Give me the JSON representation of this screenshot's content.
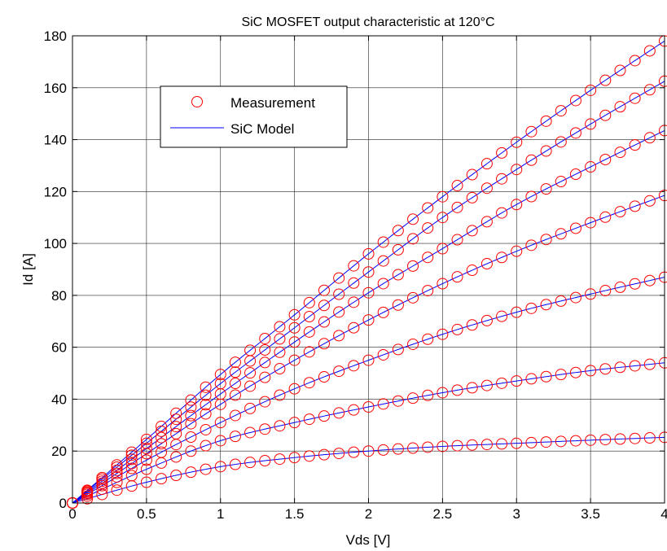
{
  "chart_data": {
    "type": "scatter",
    "title": "SiC MOSFET output characteristic at 120°C",
    "xlabel": "Vds [V]",
    "ylabel": "Id [A]",
    "xlim": [
      0,
      4
    ],
    "ylim": [
      0,
      180
    ],
    "xticks": [
      0,
      0.5,
      1,
      1.5,
      2,
      2.5,
      3,
      3.5,
      4
    ],
    "xtick_labels": [
      "0",
      "0.5",
      "1",
      "1.5",
      "2",
      "2.5",
      "3",
      "3.5",
      "4"
    ],
    "yticks": [
      0,
      20,
      40,
      60,
      80,
      100,
      120,
      140,
      160,
      180
    ],
    "ytick_labels": [
      "0",
      "20",
      "40",
      "60",
      "80",
      "100",
      "120",
      "140",
      "160",
      "180"
    ],
    "grid": true,
    "legend_position": "top-left",
    "legend": [
      {
        "label": "Measurement",
        "style": "marker",
        "color": "#ff0000"
      },
      {
        "label": "SiC Model",
        "style": "line",
        "color": "#0000ff"
      }
    ],
    "measurement_color": "#ff0000",
    "model_color": "#0000ff",
    "curves": [
      {
        "x": [
          0,
          0.5,
          1,
          1.5,
          2,
          2.5,
          3,
          3.5,
          4
        ],
        "y": [
          0,
          8,
          14,
          17.5,
          20,
          21.8,
          23,
          24.2,
          25.3
        ]
      },
      {
        "x": [
          0,
          0.5,
          1,
          1.5,
          2,
          2.5,
          3,
          3.5,
          4
        ],
        "y": [
          0,
          13,
          24,
          31,
          37,
          42.5,
          47,
          51,
          54
        ]
      },
      {
        "x": [
          0,
          0.5,
          1,
          1.5,
          2,
          2.5,
          3,
          3.5,
          4
        ],
        "y": [
          0,
          16.5,
          31,
          44,
          55,
          65,
          73.5,
          80.5,
          87
        ]
      },
      {
        "x": [
          0,
          0.5,
          1,
          1.5,
          2,
          2.5,
          3,
          3.5,
          4
        ],
        "y": [
          0,
          19,
          38,
          55,
          70.5,
          84.5,
          97,
          108,
          118.5
        ]
      },
      {
        "x": [
          0,
          0.5,
          1,
          1.5,
          2,
          2.5,
          3,
          3.5,
          4
        ],
        "y": [
          0,
          21,
          42,
          62,
          81,
          98,
          115,
          129.5,
          143.5
        ]
      },
      {
        "x": [
          0,
          0.5,
          1,
          1.5,
          2,
          2.5,
          3,
          3.5,
          4
        ],
        "y": [
          0,
          23,
          46,
          67.5,
          89,
          110,
          128.5,
          146,
          162.5
        ]
      },
      {
        "x": [
          0,
          0.5,
          1,
          1.5,
          2,
          2.5,
          3,
          3.5,
          4
        ],
        "y": [
          0,
          24.5,
          49.5,
          72.5,
          96,
          118,
          139,
          159,
          178
        ]
      }
    ]
  }
}
